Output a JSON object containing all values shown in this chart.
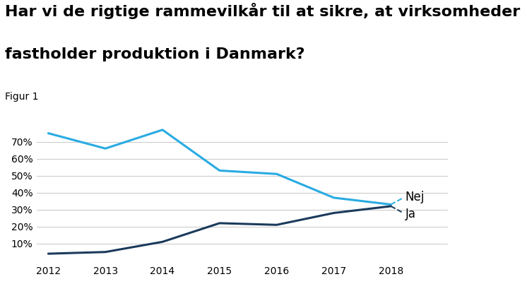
{
  "title_line1": "Har vi de rigtige rammevilkår til at sikre, at virksomheder",
  "title_line2": "fastholder produktion i Danmark?",
  "subtitle": "Figur 1",
  "years": [
    2012,
    2013,
    2014,
    2015,
    2016,
    2017,
    2018
  ],
  "nej": [
    75,
    66,
    77,
    53,
    51,
    37,
    33
  ],
  "ja": [
    4,
    5,
    11,
    22,
    21,
    28,
    32
  ],
  "nej_color": "#29ABE2",
  "ja_color": "#1B3A5C",
  "background_color": "#ffffff",
  "ylim": [
    0,
    82
  ],
  "yticks": [
    10,
    20,
    30,
    40,
    50,
    60,
    70
  ],
  "grid_color": "#cccccc",
  "title_fontsize": 16,
  "subtitle_fontsize": 10,
  "tick_fontsize": 10,
  "annotation_fontsize": 12
}
